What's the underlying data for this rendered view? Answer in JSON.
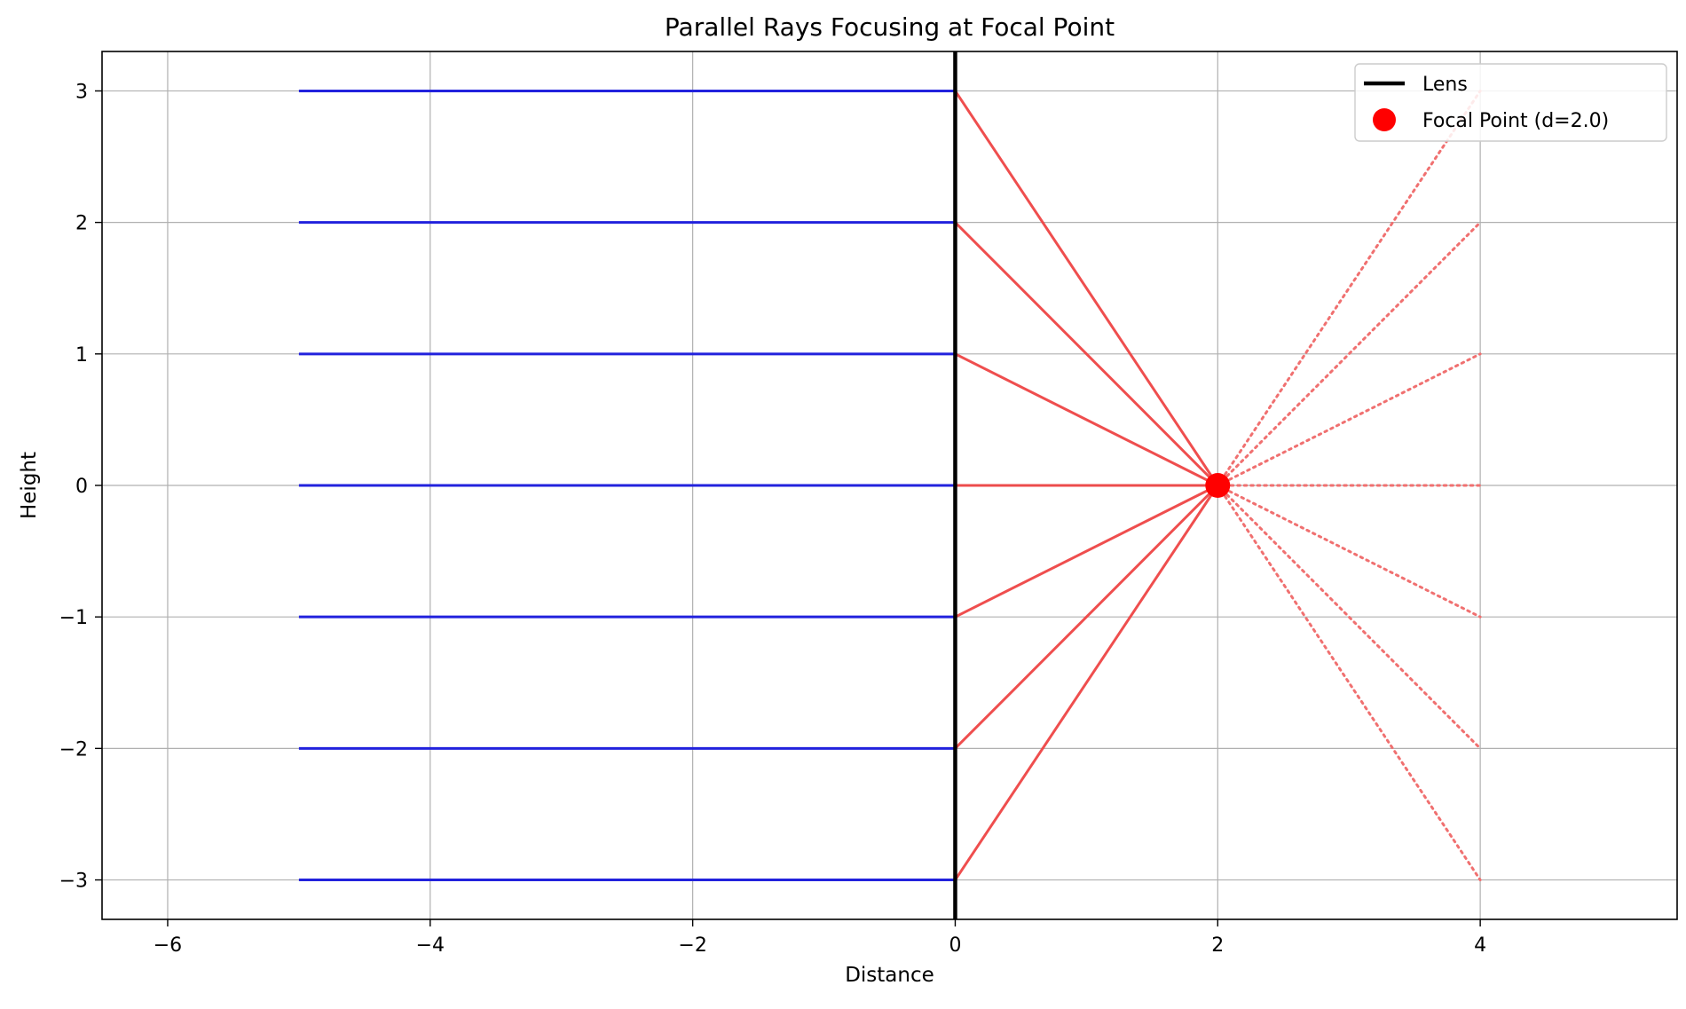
{
  "chart_data": {
    "type": "line",
    "title": "Parallel Rays Focusing at Focal Point",
    "xlabel": "Distance",
    "ylabel": "Height",
    "xlim": [
      -6.5,
      5.5
    ],
    "ylim": [
      -3.3,
      3.3
    ],
    "grid": true,
    "legend_placement": "top-right",
    "x_ticks": [
      {
        "value": -6,
        "label": "−6"
      },
      {
        "value": -4,
        "label": "−4"
      },
      {
        "value": -2,
        "label": "−2"
      },
      {
        "value": 0,
        "label": "0"
      },
      {
        "value": 2,
        "label": "2"
      },
      {
        "value": 4,
        "label": "4"
      }
    ],
    "y_ticks": [
      {
        "value": -3,
        "label": "−3"
      },
      {
        "value": -2,
        "label": "−2"
      },
      {
        "value": -1,
        "label": "−1"
      },
      {
        "value": 0,
        "label": "0"
      },
      {
        "value": 1,
        "label": "1"
      },
      {
        "value": 2,
        "label": "2"
      },
      {
        "value": 3,
        "label": "3"
      }
    ],
    "ray_heights": [
      -3,
      -2,
      -1,
      0,
      1,
      2,
      3
    ],
    "incoming_rays": {
      "x_start": -5,
      "x_end": 0,
      "color": "#2222dd"
    },
    "lens": {
      "x": 0,
      "color": "#000000"
    },
    "focal_point": {
      "x": 2.0,
      "y": 0,
      "color": "#ff0000"
    },
    "refracted_rays": {
      "x_start": 0,
      "x_end": 2.0,
      "color": "#ee4444"
    },
    "continued_rays": {
      "x_start": 2.0,
      "x_end": 4.0,
      "style": "dotted",
      "color": "#f07070"
    },
    "legend": [
      {
        "label": "Lens",
        "kind": "line",
        "color": "#000000"
      },
      {
        "label": "Focal Point (d=2.0)",
        "kind": "marker",
        "color": "#ff0000"
      }
    ]
  }
}
